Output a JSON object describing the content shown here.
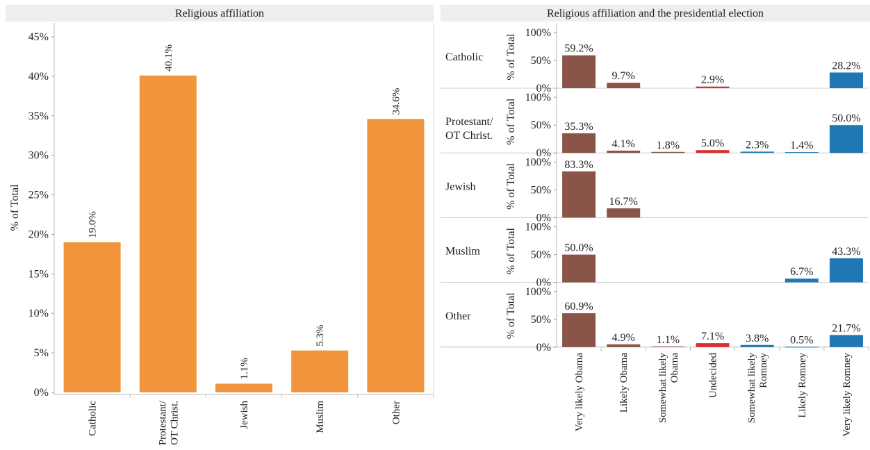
{
  "colors": {
    "affiliation_bar": "#f0953b",
    "obama": "#8b5448",
    "undecided": "#d62f2f",
    "romney": "#1f77b4",
    "header_bg": "#eeeeee"
  },
  "chart_data": [
    {
      "type": "bar",
      "title": "Religious affiliation",
      "ylabel": "% of Total",
      "ylim": [
        0,
        45
      ],
      "ytick_labels": [
        "0%",
        "5%",
        "10%",
        "15%",
        "20%",
        "25%",
        "30%",
        "35%",
        "40%",
        "45%"
      ],
      "categories": [
        "Catholic",
        "Protestant/\nOT Christ.",
        "Jewish",
        "Muslim",
        "Other"
      ],
      "values": [
        19.0,
        40.1,
        1.1,
        5.3,
        34.6
      ],
      "value_labels": [
        "19.0%",
        "40.1%",
        "1.1%",
        "5.3%",
        "34.6%"
      ],
      "grid": false
    },
    {
      "type": "bar",
      "title": "Religious affiliation and the presidential election",
      "ylabel": "% of Total",
      "ylim": [
        0,
        100
      ],
      "ytick_labels": [
        "0%",
        "50%",
        "100%"
      ],
      "categories": [
        "Very likely Obama",
        "Likely Obama",
        "Somewhat likely\nObama",
        "Undecided",
        "Somewhat likely\nRomney",
        "Likely Romney",
        "Very likely Romney"
      ],
      "category_colors": [
        "obama",
        "obama",
        "obama",
        "undecided",
        "romney",
        "romney",
        "romney"
      ],
      "rows": [
        {
          "label": "Catholic",
          "values": [
            59.2,
            9.7,
            null,
            2.9,
            null,
            null,
            28.2
          ],
          "value_labels": [
            "59.2%",
            "9.7%",
            null,
            "2.9%",
            null,
            null,
            "28.2%"
          ]
        },
        {
          "label": "Protestant/\nOT Christ.",
          "values": [
            35.3,
            4.1,
            1.8,
            5.0,
            2.3,
            1.4,
            50.0
          ],
          "value_labels": [
            "35.3%",
            "4.1%",
            "1.8%",
            "5.0%",
            "2.3%",
            "1.4%",
            "50.0%"
          ]
        },
        {
          "label": "Jewish",
          "values": [
            83.3,
            16.7,
            null,
            null,
            null,
            null,
            null
          ],
          "value_labels": [
            "83.3%",
            "16.7%",
            null,
            null,
            null,
            null,
            null
          ]
        },
        {
          "label": "Muslim",
          "values": [
            50.0,
            null,
            null,
            null,
            null,
            6.7,
            43.3
          ],
          "value_labels": [
            "50.0%",
            null,
            null,
            null,
            null,
            "6.7%",
            "43.3%"
          ]
        },
        {
          "label": "Other",
          "values": [
            60.9,
            4.9,
            1.1,
            7.1,
            3.8,
            0.5,
            21.7
          ],
          "value_labels": [
            "60.9%",
            "4.9%",
            "1.1%",
            "7.1%",
            "3.8%",
            "0.5%",
            "21.7%"
          ]
        }
      ]
    }
  ]
}
